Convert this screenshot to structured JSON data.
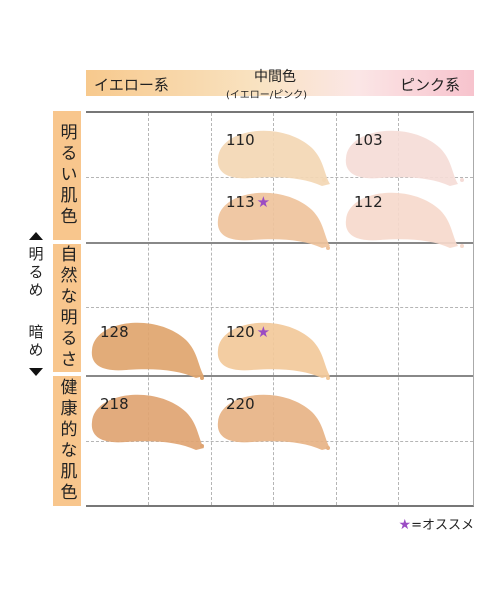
{
  "header": {
    "yellow_label": "イエロー系",
    "middle_title": "中間色",
    "middle_sub": "(イエロー/ピンク)",
    "pink_label": "ピンク系"
  },
  "rows": [
    {
      "label": "明るい肌色"
    },
    {
      "label": "自然な明るさ"
    },
    {
      "label": "健康的な肌色"
    }
  ],
  "side": {
    "brighter": "明るめ",
    "darker": "暗め"
  },
  "shades": [
    {
      "code": "110",
      "recommended": false,
      "color": "#f3d7b4"
    },
    {
      "code": "103",
      "recommended": false,
      "color": "#f5dcd7"
    },
    {
      "code": "113",
      "recommended": true,
      "color": "#efc39c"
    },
    {
      "code": "112",
      "recommended": false,
      "color": "#f6d9cc"
    },
    {
      "code": "128",
      "recommended": false,
      "color": "#e0a56e"
    },
    {
      "code": "120",
      "recommended": true,
      "color": "#f2c99a"
    },
    {
      "code": "218",
      "recommended": false,
      "color": "#dfa472"
    },
    {
      "code": "220",
      "recommended": false,
      "color": "#e7b385"
    }
  ],
  "legend": {
    "star": "★",
    "text": "=オススメ"
  },
  "colors": {
    "row_label_bg": "#f8c68d",
    "star": "#9b4cc4"
  }
}
